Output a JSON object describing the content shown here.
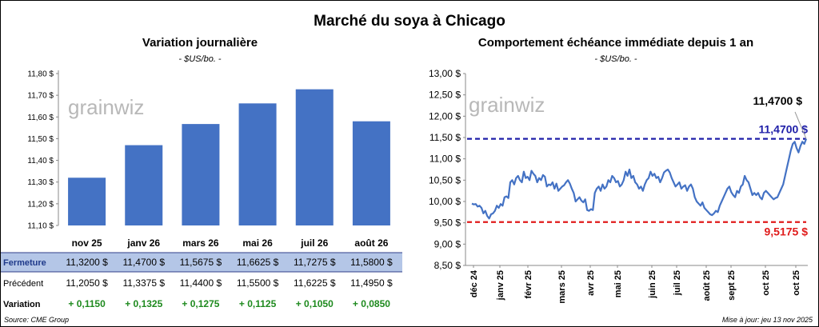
{
  "title": "Marché du soya à Chicago",
  "left": {
    "title": "Variation journalière",
    "unit": "- $US/bo. -",
    "watermark": "grainwiz",
    "chart_data": {
      "type": "bar",
      "categories": [
        "nov 25",
        "janv 26",
        "mars 26",
        "mai 26",
        "juil 26",
        "août 26"
      ],
      "values": [
        11.32,
        11.47,
        11.5675,
        11.6625,
        11.7275,
        11.58
      ],
      "ylim": [
        11.1,
        11.8
      ],
      "yticks": [
        "11,10 $",
        "11,20 $",
        "11,30 $",
        "11,40 $",
        "11,50 $",
        "11,60 $",
        "11,70 $",
        "11,80 $"
      ],
      "xlabel": "",
      "ylabel": "",
      "color": "#4472c4"
    },
    "table": {
      "rows": [
        {
          "label": "Fermeture",
          "values": [
            "11,3200  $",
            "11,4700  $",
            "11,5675  $",
            "11,6625  $",
            "11,7275  $",
            "11,5800  $"
          ]
        },
        {
          "label": "Précédent",
          "values": [
            "11,2050  $",
            "11,3375  $",
            "11,4400  $",
            "11,5500  $",
            "11,6225  $",
            "11,4950  $"
          ]
        },
        {
          "label": "Variation",
          "values": [
            "+ 0,1150",
            "+ 0,1325",
            "+ 0,1275",
            "+ 0,1125",
            "+ 0,1050",
            "+ 0,0850"
          ]
        }
      ]
    }
  },
  "right": {
    "title": "Comportement  échéance immédiate depuis 1 an",
    "unit": "- $US/bo. -",
    "watermark": "grainwiz",
    "chart_data": {
      "type": "line",
      "ylim": [
        8.5,
        13.0
      ],
      "yticks": [
        "8,50 $",
        "9,00 $",
        "9,50 $",
        "10,00 $",
        "10,50 $",
        "11,00 $",
        "11,50 $",
        "12,00 $",
        "12,50 $",
        "13,00 $"
      ],
      "xticks": [
        "déc 24",
        "janv 25",
        "févr 25",
        "mars 25",
        "avr 25",
        "mai 25",
        "juin 25",
        "juil 25",
        "août 25",
        "sept 25",
        "oct 25",
        "oct 25"
      ],
      "values": [
        9.95,
        9.93,
        9.94,
        9.88,
        9.9,
        9.85,
        9.72,
        9.78,
        9.66,
        9.6,
        9.7,
        9.72,
        9.78,
        9.9,
        9.85,
        9.94,
        9.9,
        10.1,
        10.12,
        10.08,
        10.45,
        10.5,
        10.4,
        10.55,
        10.6,
        10.5,
        10.45,
        10.7,
        10.55,
        10.58,
        10.5,
        10.72,
        10.65,
        10.6,
        10.45,
        10.55,
        10.5,
        10.62,
        10.58,
        10.35,
        10.4,
        10.38,
        10.45,
        10.3,
        10.42,
        10.25,
        10.3,
        10.35,
        10.38,
        10.45,
        10.5,
        10.42,
        10.3,
        10.2,
        10.0,
        10.05,
        10.1,
        10.02,
        9.98,
        10.05,
        9.8,
        9.78,
        9.82,
        9.8,
        10.2,
        10.3,
        10.35,
        10.25,
        10.4,
        10.3,
        10.35,
        10.5,
        10.45,
        10.6,
        10.55,
        10.45,
        10.48,
        10.35,
        10.4,
        10.5,
        10.7,
        10.6,
        10.75,
        10.55,
        10.6,
        10.45,
        10.4,
        10.3,
        10.35,
        10.25,
        10.4,
        10.5,
        10.55,
        10.7,
        10.6,
        10.65,
        10.55,
        10.58,
        10.45,
        10.55,
        10.68,
        10.72,
        10.75,
        10.68,
        10.55,
        10.45,
        10.35,
        10.4,
        10.45,
        10.3,
        10.35,
        10.38,
        10.25,
        10.35,
        10.4,
        10.3,
        10.1,
        10.0,
        9.95,
        9.9,
        9.98,
        9.85,
        9.8,
        9.75,
        9.7,
        9.68,
        9.72,
        9.78,
        9.75,
        9.9,
        10.0,
        10.1,
        10.2,
        10.3,
        10.35,
        10.22,
        10.15,
        10.1,
        10.25,
        10.2,
        10.35,
        10.4,
        10.6,
        10.5,
        10.45,
        10.3,
        10.15,
        10.2,
        10.15,
        10.2,
        10.1,
        10.05,
        10.2,
        10.25,
        10.2,
        10.15,
        10.1,
        10.05,
        10.08,
        10.1,
        10.2,
        10.3,
        10.4,
        10.6,
        10.8,
        11.0,
        11.2,
        11.35,
        11.4,
        11.25,
        11.15,
        11.3,
        11.4,
        11.35,
        11.47
      ],
      "series": [
        {
          "name": "",
          "values": []
        }
      ],
      "hlines": [
        {
          "value": 11.47,
          "label": "11,4700  $",
          "color": "#1f1fa8"
        },
        {
          "value": 9.5175,
          "label": "9,5175  $",
          "color": "#e01b1b"
        }
      ],
      "annotation": "11,4700 $",
      "xlabel": "",
      "ylabel": "",
      "color": "#4472c4"
    }
  },
  "footer": {
    "source": "Source: CME Group",
    "update": "Mise à jour: jeu 13 nov 2025"
  }
}
